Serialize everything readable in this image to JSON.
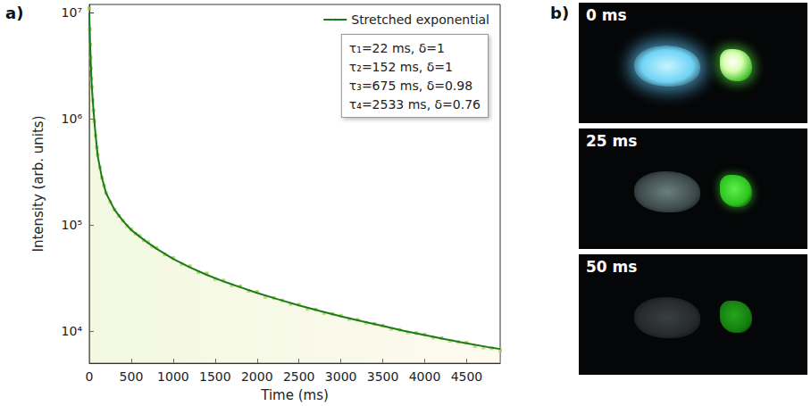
{
  "chart_data": {
    "type": "scatter",
    "panel": "a)",
    "x_label": "Time (ms)",
    "y_label": "Intensity (arb. units)",
    "log": "y",
    "grid": false,
    "legend": "upper right",
    "xlim": [
      0,
      4900
    ],
    "xticks": [
      0,
      500,
      1000,
      1500,
      2000,
      2500,
      3000,
      3500,
      4000,
      4500
    ],
    "ylim": [
      5000,
      12000000
    ],
    "yticks": [
      {
        "value": 10000,
        "label": "10⁴"
      },
      {
        "value": 100000,
        "label": "10⁵"
      },
      {
        "value": 1000000,
        "label": "10⁶"
      },
      {
        "value": 10000000,
        "label": "10⁷"
      }
    ],
    "annotations": [
      "τ₁=22 ms, δ=1",
      "τ₂=152 ms, δ=1",
      "τ₃=675 ms, δ=0.98",
      "τ₄=2533 ms, δ=0.76"
    ],
    "series": [
      {
        "type": "scatter",
        "color": "#9ccc3c",
        "marker": "square",
        "x": [
          0,
          5,
          10,
          15,
          20,
          25,
          30,
          40,
          50,
          60,
          75,
          90,
          100,
          125,
          150,
          175,
          200,
          250,
          300,
          350,
          400,
          450,
          500,
          550,
          600,
          650,
          700,
          750,
          800,
          900,
          1000,
          1100,
          1200,
          1300,
          1400,
          1500,
          1600,
          1700,
          1800,
          1900,
          2000,
          2100,
          2200,
          2300,
          2400,
          2500,
          2600,
          2700,
          2800,
          2900,
          3000,
          3100,
          3200,
          3300,
          3400,
          3500,
          3600,
          3700,
          3800,
          3900,
          4000,
          4100,
          4200,
          4300,
          4400,
          4500,
          4600,
          4700,
          4800,
          4900
        ],
        "values": [
          11000000,
          7000000,
          5000000,
          3800000,
          3000000,
          2400000,
          2000000,
          1500000,
          1200000,
          950000,
          700000,
          540000,
          460000,
          350000,
          280000,
          235000,
          200000,
          165000,
          140000,
          122000,
          110000,
          98000,
          91000,
          83000,
          79000,
          72000,
          69000,
          63000,
          61000,
          53000,
          49000,
          43000,
          41000,
          36000,
          35000,
          31000,
          30000,
          27000,
          26500,
          24000,
          23500,
          21000,
          20500,
          19500,
          18000,
          17800,
          16200,
          16000,
          14800,
          14500,
          14000,
          13000,
          12800,
          12000,
          11700,
          11300,
          10500,
          10300,
          9700,
          9600,
          9300,
          8700,
          8600,
          8100,
          7900,
          7800,
          7200,
          7000,
          6900,
          6600
        ]
      },
      {
        "type": "line",
        "name": "Stretched exponential",
        "color": "#1b7a1b",
        "line_style": "solid",
        "x": [
          0,
          10,
          20,
          30,
          50,
          75,
          100,
          150,
          200,
          300,
          400,
          500,
          600,
          700,
          800,
          1000,
          1200,
          1400,
          1600,
          1800,
          2000,
          2250,
          2500,
          2750,
          3000,
          3250,
          3500,
          3750,
          4000,
          4250,
          4500,
          4750,
          4900
        ],
        "values": [
          10000000,
          5000000,
          3000000,
          2000000,
          1200000,
          700000,
          450000,
          280000,
          200000,
          140000,
          110000,
          90000,
          78000,
          68000,
          60000,
          48000,
          40000,
          34000,
          29500,
          26000,
          23000,
          20000,
          17500,
          15500,
          13800,
          12400,
          11200,
          10100,
          9200,
          8400,
          7700,
          7100,
          6800
        ]
      }
    ]
  },
  "photos": {
    "panel": "b)",
    "frames": [
      "0 ms",
      "25 ms",
      "50 ms"
    ]
  }
}
